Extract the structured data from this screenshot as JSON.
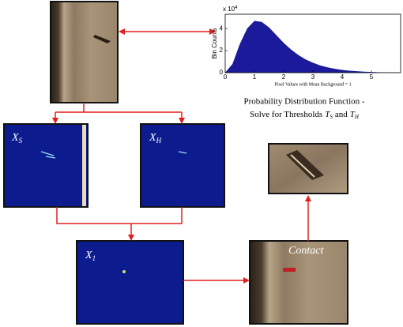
{
  "chart_data": {
    "type": "area",
    "multiplier": {
      "base": "x 10",
      "exp": "4"
    },
    "y_label": "Bin Counts",
    "x_label": "Pixel Values with Mean Background = 1",
    "color": "#1a1a9a",
    "x": [
      0,
      0.25,
      0.5,
      0.75,
      1,
      1.25,
      1.5,
      1.75,
      2,
      2.25,
      2.5,
      2.75,
      3,
      3.25,
      3.5,
      3.75,
      4,
      4.25,
      4.5,
      4.75,
      5,
      5.25,
      5.5,
      5.75,
      6
    ],
    "values": [
      0,
      0.8,
      2.6,
      4.0,
      4.7,
      4.6,
      4.1,
      3.4,
      2.7,
      2.1,
      1.6,
      1.2,
      0.9,
      0.65,
      0.48,
      0.35,
      0.25,
      0.18,
      0.13,
      0.09,
      0.06,
      0.04,
      0.03,
      0.02,
      0.01
    ],
    "xlim": [
      0,
      6
    ],
    "ylim": [
      0,
      5.3
    ],
    "xticks": [
      0,
      1,
      2,
      3,
      4,
      5
    ],
    "yticks": [
      0,
      2,
      4
    ]
  },
  "caption": {
    "line1": "Probability Distribution Function -",
    "line2": [
      "Solve for Thresholds",
      {
        "symbol": "T",
        "sub": "S"
      },
      "and",
      {
        "symbol": "T",
        "sub": "H"
      }
    ]
  },
  "nodes": [
    {
      "symbol": "X",
      "sub": "S"
    },
    {
      "symbol": "X",
      "sub": "H"
    },
    {
      "symbol": "X",
      "sub": "1"
    },
    {
      "label": "Contact"
    }
  ]
}
